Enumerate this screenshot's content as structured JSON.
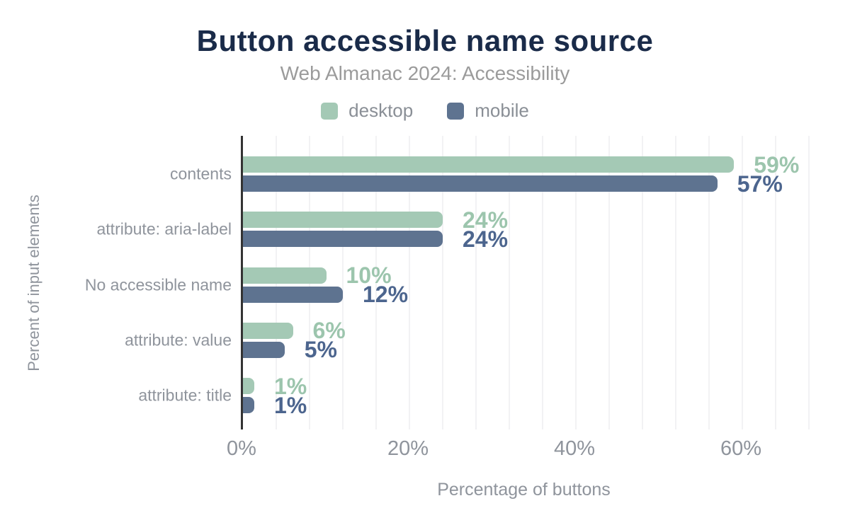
{
  "chart_data": {
    "type": "bar",
    "orientation": "horizontal",
    "title": "Button accessible name source",
    "subtitle": "Web Almanac 2024: Accessibility",
    "xlabel": "Percentage of buttons",
    "ylabel": "Percent of input elements",
    "categories": [
      "contents",
      "attribute: aria-label",
      "No accessible name",
      "attribute: value",
      "attribute: title"
    ],
    "series": [
      {
        "name": "desktop",
        "color": "#a4c9b5",
        "label_color": "#9cc5ad",
        "values": [
          59,
          24,
          10,
          6,
          1
        ]
      },
      {
        "name": "mobile",
        "color": "#5e7390",
        "label_color": "#4c658e",
        "values": [
          57,
          24,
          12,
          5,
          1
        ]
      }
    ],
    "value_suffix": "%",
    "xlim": [
      0,
      68
    ],
    "x_ticks": [
      {
        "value": 0,
        "label": "0%"
      },
      {
        "value": 20,
        "label": "20%"
      },
      {
        "value": 40,
        "label": "40%"
      },
      {
        "value": 60,
        "label": "60%"
      }
    ],
    "minor_gridline_step": 4,
    "grid": true,
    "legend_position": "top",
    "colors": {
      "title": "#1a2b49",
      "subtitle": "#9b9b9b",
      "axis_text": "#8f949c",
      "legend_text": "#8a8f96",
      "gridline": "#f2f2f4",
      "axis_line": "#333333",
      "background": "#ffffff"
    }
  }
}
